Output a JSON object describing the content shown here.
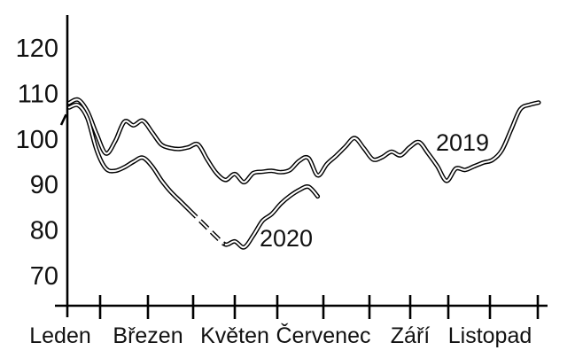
{
  "figure": {
    "background": "#ffffff",
    "line_color": "#000000",
    "text_color": "#111111"
  },
  "chart_data": {
    "type": "line",
    "title": "",
    "xlabel": "",
    "ylabel": "",
    "grid": false,
    "legend_position": "inline-labels-on-chart",
    "x_axis": {
      "unit": "week-of-year",
      "month_labels": [
        "Leden",
        "Březen",
        "Květen",
        "Červenec",
        "Září",
        "Listopad"
      ],
      "minor_ticks": "every month (Feb–Dec), labels under every other tick"
    },
    "y_axis": {
      "tick_labels": [
        "120",
        "110",
        "100",
        "90",
        "80",
        "70"
      ],
      "range": [
        70,
        120
      ]
    },
    "series": [
      {
        "name": "2019",
        "label": "2019",
        "style": "double-outline solid line",
        "week_start": 1,
        "values": [
          107.9,
          108.6,
          106.0,
          101.0,
          96.8,
          99.5,
          103.8,
          103.0,
          104.0,
          101.5,
          98.8,
          98.0,
          97.8,
          98.2,
          98.8,
          95.5,
          92.5,
          91.0,
          92.3,
          90.5,
          92.5,
          92.8,
          93.0,
          92.7,
          93.2,
          95.2,
          95.8,
          92.0,
          94.5,
          96.3,
          98.3,
          100.2,
          98.0,
          95.5,
          96.0,
          97.2,
          96.4,
          98.2,
          99.3,
          96.8,
          94.0,
          90.8,
          93.5,
          93.2,
          94.0,
          94.8,
          95.4,
          97.5,
          102.0,
          106.5,
          107.5,
          108.0
        ]
      },
      {
        "name": "2020",
        "label": "2020",
        "style": "double-outline line, dashed segment weeks 14-18, dashed lead-in at start",
        "week_start": 1,
        "dashed_weeks": [
          14,
          18
        ],
        "dashed_lead_in": true,
        "values": [
          106.9,
          107.4,
          104.5,
          97.5,
          93.5,
          93.0,
          93.8,
          95.0,
          95.9,
          94.0,
          91.0,
          88.5,
          86.5,
          84.5,
          82.5,
          80.5,
          78.5,
          76.8,
          77.5,
          76.2,
          78.8,
          82.0,
          83.5,
          85.8,
          87.5,
          88.8,
          89.5,
          87.4
        ]
      }
    ]
  }
}
